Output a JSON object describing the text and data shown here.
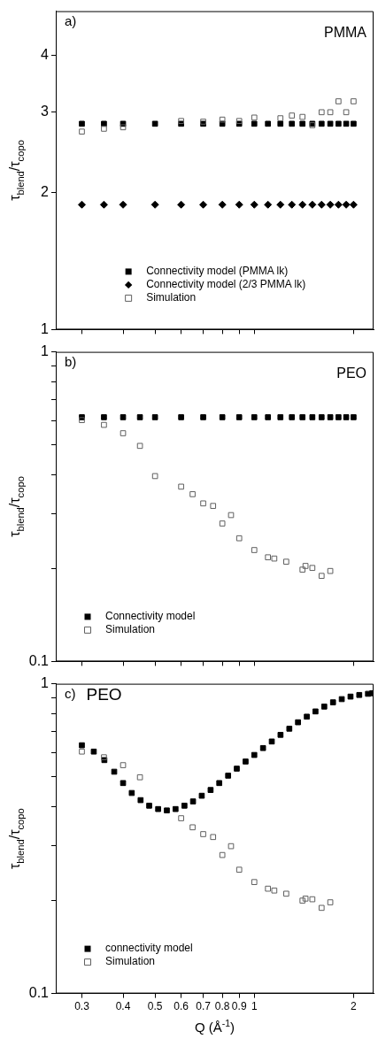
{
  "chart_data": [
    {
      "type": "scatter",
      "title": "PMMA",
      "annotations": [
        "a)"
      ],
      "ylabel": "τ$_{blend}$/τ$_{copo}$",
      "log": "xy",
      "grid": false,
      "legend": "bottom",
      "tick_labels": "y",
      "xlim": [
        0.25,
        2.3
      ],
      "ylim": [
        1,
        5
      ],
      "xticks": [
        0.3,
        0.4,
        0.5,
        0.6,
        0.7,
        0.8,
        0.9,
        1,
        2
      ],
      "yticks": [
        1,
        2,
        3,
        4
      ],
      "series": [
        {
          "name": "Connectivity model (PMMA lk)",
          "color": "#000000",
          "marker": "square",
          "x": [
            0.3,
            0.35,
            0.4,
            0.5,
            0.6,
            0.7,
            0.8,
            0.9,
            1.0,
            1.1,
            1.2,
            1.3,
            1.4,
            1.5,
            1.6,
            1.7,
            1.8,
            1.9,
            2.0
          ],
          "values": [
            2.83,
            2.83,
            2.83,
            2.83,
            2.83,
            2.83,
            2.83,
            2.83,
            2.83,
            2.83,
            2.83,
            2.83,
            2.83,
            2.83,
            2.83,
            2.83,
            2.83,
            2.83,
            2.83
          ]
        },
        {
          "name": "Connectivity model (2/3 PMMA lk)",
          "color": "#000000",
          "marker": "diamond",
          "x": [
            0.3,
            0.35,
            0.4,
            0.5,
            0.6,
            0.7,
            0.8,
            0.9,
            1.0,
            1.1,
            1.2,
            1.3,
            1.4,
            1.5,
            1.6,
            1.7,
            1.8,
            1.9,
            2.0
          ],
          "values": [
            1.88,
            1.88,
            1.88,
            1.88,
            1.88,
            1.88,
            1.88,
            1.88,
            1.88,
            1.88,
            1.88,
            1.88,
            1.88,
            1.88,
            1.88,
            1.88,
            1.88,
            1.88,
            1.88
          ]
        },
        {
          "name": "Simulation",
          "color": "#606060",
          "marker": "square-open",
          "x": [
            0.3,
            0.35,
            0.4,
            0.5,
            0.6,
            0.7,
            0.8,
            0.9,
            1.0,
            1.1,
            1.2,
            1.3,
            1.4,
            1.5,
            1.6,
            1.7,
            1.8,
            1.9,
            2.0
          ],
          "values": [
            2.72,
            2.76,
            2.78,
            null,
            2.87,
            2.86,
            2.89,
            2.87,
            2.92,
            null,
            2.91,
            2.95,
            2.93,
            2.81,
            3.0,
            3.0,
            3.17,
            3.0,
            3.17
          ]
        }
      ]
    },
    {
      "type": "scatter",
      "title": "PEO",
      "annotations": [
        "b)"
      ],
      "ylabel": "τ$_{blend}$/τ$_{copo}$",
      "log": "xy",
      "grid": false,
      "legend": "bottom left",
      "tick_labels": "y",
      "xlim": [
        0.25,
        2.3
      ],
      "ylim": [
        0.1,
        1
      ],
      "xticks": [
        0.3,
        0.4,
        0.5,
        0.6,
        0.7,
        0.8,
        0.9,
        1,
        2
      ],
      "yticks": [
        0.1,
        {
          "value": 0.2,
          "label": null
        },
        {
          "value": 0.3,
          "label": null
        },
        {
          "value": 0.4,
          "label": null
        },
        {
          "value": 0.5,
          "label": null
        },
        {
          "value": 0.6,
          "label": null
        },
        {
          "value": 0.7,
          "label": null
        },
        {
          "value": 0.8,
          "label": null
        },
        {
          "value": 0.9,
          "label": null
        },
        1
      ],
      "series": [
        {
          "name": "Connectivity model",
          "color": "#000000",
          "marker": "square",
          "x": [
            0.3,
            0.35,
            0.4,
            0.45,
            0.5,
            0.6,
            0.7,
            0.8,
            0.9,
            1.0,
            1.1,
            1.2,
            1.3,
            1.4,
            1.5,
            1.6,
            1.7,
            1.8,
            1.9,
            2.0
          ],
          "values": [
            0.615,
            0.615,
            0.615,
            0.615,
            0.615,
            0.615,
            0.615,
            0.615,
            0.615,
            0.615,
            0.615,
            0.615,
            0.615,
            0.615,
            0.615,
            0.615,
            0.615,
            0.615,
            0.615,
            0.615
          ]
        },
        {
          "name": "Simulation",
          "color": "#606060",
          "marker": "square-open",
          "x": [
            0.3,
            0.35,
            0.4,
            0.45,
            0.5,
            0.6,
            0.65,
            0.7,
            0.75,
            0.8,
            0.85,
            0.9,
            1.0,
            1.1,
            1.15,
            1.25,
            1.4,
            1.43,
            1.5,
            1.6,
            1.7
          ],
          "values": [
            0.602,
            0.581,
            0.546,
            0.497,
            0.397,
            0.367,
            0.347,
            0.324,
            0.318,
            0.279,
            0.297,
            0.25,
            0.229,
            0.217,
            0.215,
            0.21,
            0.198,
            0.2035,
            0.2005,
            0.189,
            0.196
          ]
        }
      ]
    },
    {
      "type": "scatter",
      "title": "PEO",
      "annotations": [
        "c)"
      ],
      "ylabel": "τ$_{blend}$/τ$_{copo}$",
      "xlabel": "Q (Å$^{-1}$)",
      "log": "xy",
      "grid": false,
      "legend": "bottom left",
      "xlim": [
        0.25,
        2.3
      ],
      "ylim": [
        0.1,
        1
      ],
      "xticks": [
        0.3,
        0.4,
        0.5,
        0.6,
        0.7,
        0.8,
        0.9,
        1,
        2
      ],
      "yticks": [
        0.1,
        {
          "value": 0.2,
          "label": null
        },
        {
          "value": 0.3,
          "label": null
        },
        {
          "value": 0.4,
          "label": null
        },
        {
          "value": 0.5,
          "label": null
        },
        {
          "value": 0.6,
          "label": null
        },
        {
          "value": 0.7,
          "label": null
        },
        {
          "value": 0.8,
          "label": null
        },
        {
          "value": 0.9,
          "label": null
        },
        1
      ],
      "series": [
        {
          "name": "connectivity model",
          "color": "#000000",
          "marker": "square",
          "x": [
            0.3,
            0.326,
            0.351,
            0.376,
            0.4,
            0.425,
            0.452,
            0.48,
            0.511,
            0.543,
            0.577,
            0.614,
            0.652,
            0.693,
            0.737,
            0.783,
            0.833,
            0.885,
            0.941,
            1.0,
            1.063,
            1.13,
            1.201,
            1.277,
            1.357,
            1.443,
            1.533,
            1.63,
            1.733,
            1.842,
            1.958,
            2.081,
            2.212,
            2.28
          ],
          "values": [
            0.633,
            0.604,
            0.567,
            0.52,
            0.478,
            0.444,
            0.421,
            0.404,
            0.394,
            0.39,
            0.394,
            0.404,
            0.417,
            0.435,
            0.454,
            0.478,
            0.505,
            0.532,
            0.561,
            0.589,
            0.62,
            0.651,
            0.684,
            0.716,
            0.751,
            0.783,
            0.814,
            0.844,
            0.871,
            0.892,
            0.909,
            0.92,
            0.928,
            0.932
          ]
        },
        {
          "name": "Simulation",
          "color": "#606060",
          "marker": "square-open",
          "x": [
            0.3,
            0.35,
            0.4,
            0.45,
            0.6,
            0.65,
            0.7,
            0.75,
            0.8,
            0.85,
            0.9,
            1.0,
            1.1,
            1.15,
            1.25,
            1.4,
            1.43,
            1.5,
            1.6,
            1.7
          ],
          "values": [
            0.604,
            0.579,
            0.546,
            0.499,
            0.368,
            0.344,
            0.327,
            0.32,
            0.28,
            0.299,
            0.251,
            0.229,
            0.218,
            0.215,
            0.21,
            0.1995,
            0.2025,
            0.2015,
            0.189,
            0.197
          ]
        }
      ]
    }
  ]
}
